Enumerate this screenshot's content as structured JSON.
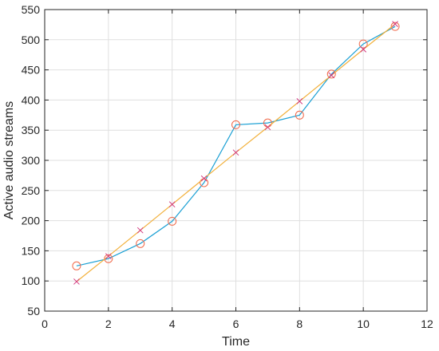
{
  "chart_data": {
    "type": "line",
    "title": "",
    "xlabel": "Time",
    "ylabel": "Active audio streams",
    "xlim": [
      0,
      12
    ],
    "ylim": [
      50,
      550
    ],
    "xticks": [
      0,
      2,
      4,
      6,
      8,
      10,
      12
    ],
    "yticks": [
      50,
      100,
      150,
      200,
      250,
      300,
      350,
      400,
      450,
      500,
      550
    ],
    "grid": true,
    "series": [
      {
        "marker": "circle",
        "color": "#1ba0d4",
        "marker_color": "#f0694a",
        "x": [
          1,
          2,
          3,
          4,
          5,
          6,
          7,
          8,
          9,
          10,
          11
        ],
        "y": [
          125,
          137,
          162,
          199,
          263,
          359,
          362,
          375,
          443,
          493,
          522
        ]
      },
      {
        "marker": "x",
        "color": "#f2b03a",
        "marker_color": "#d2387f",
        "x": [
          1,
          2,
          3,
          4,
          5,
          6,
          7,
          8,
          9,
          10,
          11
        ],
        "y": [
          99,
          141,
          184,
          227,
          270,
          313,
          355,
          398,
          441,
          484,
          526
        ]
      }
    ]
  }
}
